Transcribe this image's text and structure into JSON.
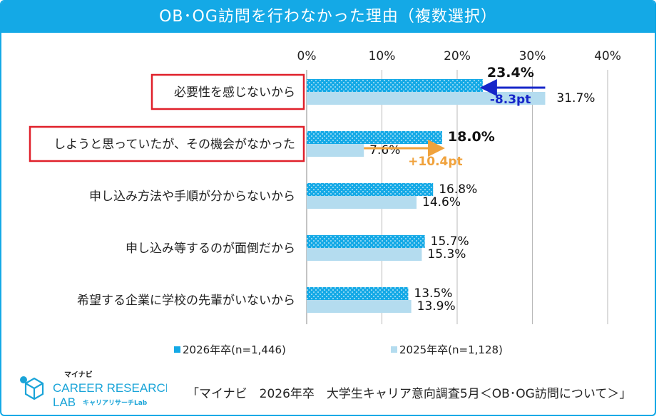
{
  "chart_data": {
    "type": "bar",
    "orientation": "horizontal",
    "title": "OB･OG訪問を行わなかった理由（複数選択）",
    "categories": [
      "必要性を感じないから",
      "しようと思っていたが、その機会がなかった",
      "申し込み方法や手順が分からないから",
      "申し込み等するのが面倒だから",
      "希望する企業に学校の先輩がいないから"
    ],
    "highlighted_categories": [
      0,
      1
    ],
    "series": [
      {
        "name": "2026年卒(n=1,446)",
        "values": [
          23.4,
          18.0,
          16.8,
          15.7,
          13.5
        ],
        "labels": [
          "23.4%",
          "18.0%",
          "16.8%",
          "15.7%",
          "13.5%"
        ],
        "color": "#14a9e6",
        "pattern": "dotted"
      },
      {
        "name": "2025年卒(n=1,128)",
        "values": [
          31.7,
          7.6,
          14.6,
          15.3,
          13.9
        ],
        "labels": [
          "31.7%",
          "7.6%",
          "14.6%",
          "15.3%",
          "13.9%"
        ],
        "color": "#b4dcef",
        "pattern": "solid"
      }
    ],
    "xlim": [
      0,
      40
    ],
    "x_ticks": [
      "0%",
      "10%",
      "20%",
      "30%",
      "40%"
    ],
    "grid": true,
    "legend_position": "bottom",
    "annotations": [
      {
        "category_index": 0,
        "text": "-8.3pt",
        "color": "#1626c9",
        "direction": "left"
      },
      {
        "category_index": 1,
        "text": "+10.4pt",
        "color": "#f0a23c",
        "direction": "right"
      }
    ],
    "highlight_color": "#e0202a"
  },
  "logo": {
    "katakana": "マイナビ",
    "line1": "CAREER RESEARCH",
    "line2": "LAB",
    "sub": "キャリアリサーチLab",
    "color": "#1aa4d8"
  },
  "source_note": "「マイナビ　2026年卒　大学生キャリア意向調査5月＜OB･OG訪問について＞」"
}
